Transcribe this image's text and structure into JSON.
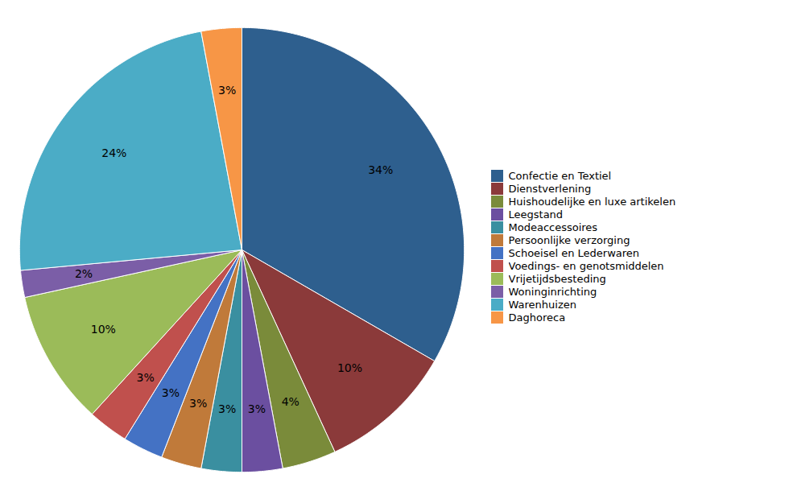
{
  "chart_data": {
    "type": "pie",
    "categories": [
      "Confectie en Textiel",
      "Dienstverlening",
      "Huishoudelijke en luxe artikelen",
      "Leegstand",
      "Modeaccessoires",
      "Persoonlijke verzorging",
      "Schoeisel en Lederwaren",
      "Voedings- en genotsmiddelen",
      "Vrijetijdsbesteding",
      "Woninginrichting",
      "Warenhuizen",
      "Daghoreca"
    ],
    "values": [
      34,
      10,
      4,
      3,
      3,
      3,
      3,
      3,
      10,
      2,
      24,
      3
    ],
    "value_labels": [
      "34%",
      "10%",
      "4%",
      "3%",
      "3%",
      "3%",
      "3%",
      "3%",
      "10%",
      "2%",
      "24%",
      "3%"
    ],
    "colors": [
      "#2E5F8E",
      "#8B3A3A",
      "#7A8B3A",
      "#6B4FA0",
      "#3A8FA0",
      "#C07A3A",
      "#4472C4",
      "#C0504D",
      "#9BBB59",
      "#7B5EA7",
      "#4BACC6",
      "#F79646"
    ],
    "data_labels": true,
    "legend": "right"
  }
}
